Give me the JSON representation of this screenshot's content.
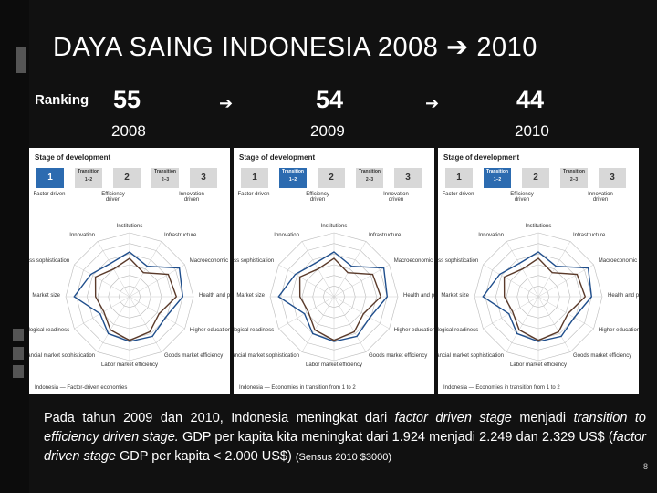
{
  "title": {
    "prefix": "DAYA SAING INDONESIA 2008",
    "arrow": "➔",
    "suffix": "2010"
  },
  "ranking": {
    "label": "Ranking",
    "items": [
      {
        "rank": "55",
        "year": "2008"
      },
      {
        "rank": "54",
        "year": "2009"
      },
      {
        "rank": "44",
        "year": "2010"
      }
    ],
    "arrow": "➔"
  },
  "panels": [
    {
      "title": "Stage of development",
      "stages": [
        {
          "n": "1",
          "active": true
        },
        {
          "n": "Transition\n1–2",
          "active": false
        },
        {
          "n": "2",
          "active": false
        },
        {
          "n": "Transition\n2–3",
          "active": false
        },
        {
          "n": "3",
          "active": false
        }
      ],
      "stage_labels": [
        "Factor driven",
        "Efficiency driven",
        "Innovation driven"
      ],
      "legend": "Indonesia — Factor-driven economies"
    },
    {
      "title": "Stage of development",
      "stages": [
        {
          "n": "1",
          "active": false
        },
        {
          "n": "Transition\n1–2",
          "active": true
        },
        {
          "n": "2",
          "active": false
        },
        {
          "n": "Transition\n2–3",
          "active": false
        },
        {
          "n": "3",
          "active": false
        }
      ],
      "stage_labels": [
        "Factor driven",
        "Efficiency driven",
        "Innovation driven"
      ],
      "legend": "Indonesia — Economies in transition from 1 to 2"
    },
    {
      "title": "Stage of development",
      "stages": [
        {
          "n": "1",
          "active": false
        },
        {
          "n": "Transition\n1–2",
          "active": true
        },
        {
          "n": "2",
          "active": false
        },
        {
          "n": "Transition\n2–3",
          "active": false
        },
        {
          "n": "3",
          "active": false
        }
      ],
      "stage_labels": [
        "Factor driven",
        "Efficiency driven",
        "Innovation driven"
      ],
      "legend": "Indonesia — Economies in transition from 1 to 2"
    }
  ],
  "radar_axes": [
    "Institutions",
    "Infrastructure",
    "Macroeconomic stability",
    "Health and primary education",
    "Higher education and training",
    "Goods market efficiency",
    "Labor market efficiency",
    "Financial market sophistication",
    "Technological readiness",
    "Market size",
    "Business sophistication",
    "Innovation"
  ],
  "caption": {
    "p1": "Pada tahun 2009 dan 2010, Indonesia meningkat dari ",
    "i1": "factor driven stage",
    "p2": " menjadi ",
    "i2": "transition to efficiency driven stage.",
    "p3": " GDP per kapita kita meningkat dari 1.924 menjadi 2.249 dan 2.329 US$ (",
    "i3": "factor driven stage",
    "p4": " GDP per kapita < 2.000 US$)",
    "census": "(Sensus 2010 $3000)"
  },
  "page_number": "8"
}
